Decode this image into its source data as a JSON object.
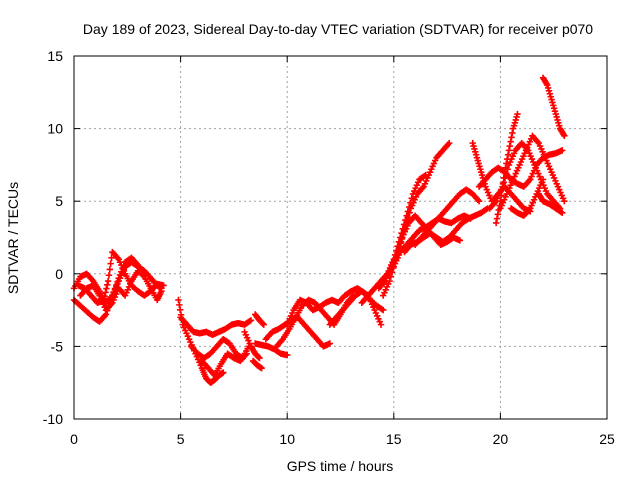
{
  "chart_data": {
    "type": "scatter",
    "title": "Day 189 of 2023, Sidereal Day-to-day VTEC variation (SDTVAR) for receiver p070",
    "xlabel": "GPS time / hours",
    "ylabel": "SDTVAR / TECUs",
    "xlim": [
      0,
      25
    ],
    "ylim": [
      -10,
      15
    ],
    "xticks": [
      0,
      5,
      10,
      15,
      20,
      25
    ],
    "yticks": [
      -10,
      -5,
      0,
      5,
      10,
      15
    ],
    "grid": true,
    "marker": "plus",
    "color": "#ff0000",
    "series": [
      {
        "x": [
          0.0,
          0.3,
          0.6,
          0.9,
          1.2,
          1.5,
          1.8,
          2.1,
          2.4,
          2.7,
          3.0,
          3.3,
          3.6,
          3.9,
          4.1
        ],
        "y": [
          -1.0,
          -0.2,
          0.0,
          -0.5,
          -1.2,
          -2.0,
          -1.5,
          -0.5,
          0.5,
          0.8,
          0.5,
          0.2,
          -0.3,
          -0.8,
          -1.0
        ]
      },
      {
        "x": [
          0.0,
          0.3,
          0.6,
          0.9,
          1.2,
          1.5,
          1.8,
          2.1,
          2.4,
          2.7,
          3.0
        ],
        "y": [
          -1.8,
          -2.2,
          -2.6,
          -3.0,
          -3.3,
          -2.8,
          -1.5,
          -0.3,
          0.8,
          1.1,
          0.6
        ]
      },
      {
        "x": [
          0.2,
          0.5,
          0.8,
          1.1,
          1.4,
          1.6,
          1.8,
          2.1,
          2.4,
          2.7,
          3.0,
          3.3,
          3.6,
          3.9,
          4.2
        ],
        "y": [
          -0.8,
          -1.0,
          -1.5,
          -2.0,
          -1.8,
          -0.5,
          1.5,
          1.0,
          0.0,
          -0.8,
          -1.2,
          -1.5,
          -1.2,
          -0.7,
          -0.8
        ]
      },
      {
        "x": [
          0.3,
          0.6,
          0.9,
          1.2,
          1.5,
          1.8,
          2.1,
          2.4,
          2.7,
          3.0,
          3.3,
          3.6,
          3.9,
          4.1
        ],
        "y": [
          -1.5,
          -1.0,
          -0.8,
          -1.5,
          -2.5,
          -2.0,
          -1.0,
          -1.5,
          -0.5,
          0.2,
          -0.2,
          -1.0,
          -1.8,
          -1.2
        ]
      },
      {
        "x": [
          4.9,
          5.1,
          5.4,
          5.7,
          6.0,
          6.2,
          6.4,
          6.6,
          6.8,
          7.0
        ],
        "y": [
          -1.8,
          -3.5,
          -4.5,
          -5.5,
          -6.5,
          -7.2,
          -7.5,
          -7.3,
          -7.0,
          -6.8
        ]
      },
      {
        "x": [
          5.0,
          5.3,
          5.6,
          5.9,
          6.2,
          6.5,
          6.8,
          7.1,
          7.4,
          7.7,
          8.0,
          8.3
        ],
        "y": [
          -3.0,
          -3.5,
          -4.0,
          -4.1,
          -4.0,
          -4.2,
          -4.0,
          -3.8,
          -3.5,
          -3.4,
          -3.5,
          -3.2
        ]
      },
      {
        "x": [
          5.5,
          5.8,
          6.1,
          6.4,
          6.7,
          7.0,
          7.3,
          7.6,
          7.9,
          8.2
        ],
        "y": [
          -5.0,
          -5.5,
          -5.8,
          -5.5,
          -5.0,
          -4.5,
          -4.8,
          -5.5,
          -5.8,
          -5.0
        ]
      },
      {
        "x": [
          6.0,
          6.3,
          6.6,
          6.9,
          7.2,
          7.5,
          7.8,
          8.1
        ],
        "y": [
          -6.0,
          -6.5,
          -7.0,
          -6.2,
          -5.5,
          -5.8,
          -6.0,
          -5.5
        ]
      },
      {
        "x": [
          8.0,
          8.3,
          8.5,
          8.7
        ],
        "y": [
          -4.0,
          -5.0,
          -5.5,
          -5.8
        ]
      },
      {
        "x": [
          8.4,
          8.6,
          8.8
        ],
        "y": [
          -6.0,
          -6.3,
          -6.5
        ]
      },
      {
        "x": [
          8.5,
          8.7,
          8.9
        ],
        "y": [
          -2.8,
          -3.2,
          -3.5
        ]
      },
      {
        "x": [
          8.5,
          8.8,
          9.1,
          9.4,
          9.7,
          10.0
        ],
        "y": [
          -4.8,
          -4.9,
          -5.0,
          -5.2,
          -5.5,
          -5.6
        ]
      },
      {
        "x": [
          9.0,
          9.3,
          9.6,
          9.9,
          10.2,
          10.5,
          10.8,
          11.1,
          11.4,
          11.7,
          12.0
        ],
        "y": [
          -4.5,
          -4.0,
          -3.8,
          -3.5,
          -3.2,
          -3.0,
          -3.5,
          -4.0,
          -4.5,
          -5.0,
          -4.8
        ]
      },
      {
        "x": [
          9.5,
          9.8,
          10.1,
          10.4,
          10.7,
          11.0,
          11.3,
          11.6,
          11.9,
          12.2,
          12.5,
          12.8,
          13.1
        ],
        "y": [
          -5.0,
          -4.5,
          -3.8,
          -3.0,
          -2.2,
          -1.8,
          -2.0,
          -2.5,
          -3.0,
          -3.5,
          -2.8,
          -2.0,
          -1.5
        ]
      },
      {
        "x": [
          10.0,
          10.3,
          10.6,
          10.9,
          11.2,
          11.5,
          11.8,
          12.1,
          12.4,
          12.7,
          13.0,
          13.3,
          13.6,
          13.9,
          14.2,
          14.5
        ],
        "y": [
          -3.5,
          -2.5,
          -1.8,
          -2.0,
          -2.5,
          -2.3,
          -2.0,
          -1.8,
          -2.0,
          -1.5,
          -1.2,
          -1.0,
          -1.3,
          -1.8,
          -2.2,
          -2.5
        ]
      },
      {
        "x": [
          12.0,
          12.3,
          12.6,
          12.9,
          13.2,
          13.5,
          13.8,
          14.1,
          14.4
        ],
        "y": [
          -3.5,
          -3.0,
          -2.5,
          -2.0,
          -1.5,
          -1.2,
          -1.5,
          -2.5,
          -3.5
        ]
      },
      {
        "x": [
          13.5,
          13.8,
          14.1,
          14.4,
          14.7,
          15.0,
          15.3,
          15.6,
          15.9,
          16.2,
          16.5
        ],
        "y": [
          -2.0,
          -1.5,
          -1.0,
          -0.5,
          0.0,
          1.0,
          2.5,
          4.0,
          5.5,
          6.5,
          6.8
        ]
      },
      {
        "x": [
          14.3,
          14.6,
          14.9,
          15.2,
          15.5,
          15.8,
          16.1,
          16.4,
          16.7,
          17.0,
          17.3,
          17.6
        ],
        "y": [
          -1.0,
          -0.5,
          0.5,
          1.5,
          3.0,
          4.5,
          5.5,
          6.0,
          7.0,
          8.0,
          8.5,
          9.0
        ]
      },
      {
        "x": [
          14.5,
          14.8,
          15.1,
          15.4,
          15.7,
          16.0,
          16.3,
          16.6,
          16.9,
          17.2,
          17.5,
          17.8,
          18.1,
          18.4,
          18.7,
          19.0
        ],
        "y": [
          -1.5,
          -0.5,
          1.0,
          2.5,
          3.5,
          4.0,
          3.5,
          3.0,
          3.5,
          4.0,
          4.5,
          5.0,
          5.5,
          5.8,
          5.5,
          5.0
        ]
      },
      {
        "x": [
          15.0,
          15.3,
          15.6,
          15.9,
          16.2,
          16.5,
          16.8,
          17.1,
          17.4,
          17.7,
          18.0,
          18.3,
          18.6
        ],
        "y": [
          0.5,
          1.5,
          2.0,
          2.5,
          3.0,
          3.2,
          3.5,
          3.8,
          3.6,
          3.5,
          3.8,
          4.0,
          3.8
        ]
      },
      {
        "x": [
          15.5,
          15.8,
          16.1,
          16.4,
          16.7,
          17.0,
          17.3,
          17.6,
          17.9,
          18.2,
          18.5,
          18.8,
          19.1,
          19.4
        ],
        "y": [
          1.5,
          2.0,
          2.2,
          2.5,
          2.8,
          2.5,
          2.2,
          2.5,
          3.0,
          3.5,
          3.8,
          4.0,
          4.2,
          4.5
        ]
      },
      {
        "x": [
          16.0,
          16.3,
          16.6,
          16.9,
          17.2,
          17.5,
          17.8,
          18.1
        ],
        "y": [
          2.0,
          2.5,
          3.0,
          2.5,
          2.0,
          2.2,
          2.5,
          2.3
        ]
      },
      {
        "x": [
          18.7,
          18.9,
          19.1,
          19.3,
          19.6,
          19.9,
          20.2,
          20.5,
          20.8,
          21.1,
          21.4
        ],
        "y": [
          9.0,
          8.0,
          7.0,
          6.0,
          5.0,
          5.5,
          6.0,
          5.5,
          5.0,
          4.5,
          4.3
        ]
      },
      {
        "x": [
          19.0,
          19.3,
          19.6,
          19.9,
          20.2,
          20.5,
          20.8,
          21.1,
          21.4,
          21.7,
          22.0,
          22.3,
          22.6,
          22.9
        ],
        "y": [
          6.0,
          6.5,
          7.0,
          7.3,
          7.0,
          6.5,
          6.2,
          6.0,
          6.5,
          7.5,
          8.0,
          8.2,
          8.3,
          8.5
        ]
      },
      {
        "x": [
          19.5,
          19.8,
          20.1,
          20.4,
          20.7,
          21.0,
          21.3,
          21.6,
          21.9,
          22.2,
          22.5,
          22.8
        ],
        "y": [
          4.5,
          5.0,
          6.0,
          7.5,
          8.5,
          9.0,
          8.5,
          7.5,
          6.5,
          5.5,
          5.0,
          4.5
        ]
      },
      {
        "x": [
          19.8,
          20.0,
          20.2,
          20.4,
          20.6,
          20.8
        ],
        "y": [
          3.5,
          5.0,
          7.0,
          8.5,
          10.0,
          11.0
        ]
      },
      {
        "x": [
          20.0,
          20.3,
          20.6,
          20.9,
          21.2,
          21.5,
          21.8,
          22.1,
          22.4,
          22.7,
          23.0
        ],
        "y": [
          4.5,
          5.5,
          6.5,
          7.5,
          8.5,
          9.5,
          9.0,
          8.0,
          7.0,
          6.0,
          5.0
        ]
      },
      {
        "x": [
          20.5,
          20.8,
          21.1,
          21.4,
          21.7,
          22.0
        ],
        "y": [
          4.5,
          4.2,
          4.0,
          4.5,
          5.5,
          6.5
        ]
      },
      {
        "x": [
          22.0,
          22.2,
          22.4,
          22.6,
          22.8,
          23.0
        ],
        "y": [
          13.5,
          13.0,
          12.0,
          11.0,
          10.0,
          9.5
        ]
      },
      {
        "x": [
          21.8,
          22.0,
          22.3,
          22.6,
          22.9
        ],
        "y": [
          5.5,
          5.0,
          4.8,
          4.5,
          4.2
        ]
      }
    ]
  }
}
